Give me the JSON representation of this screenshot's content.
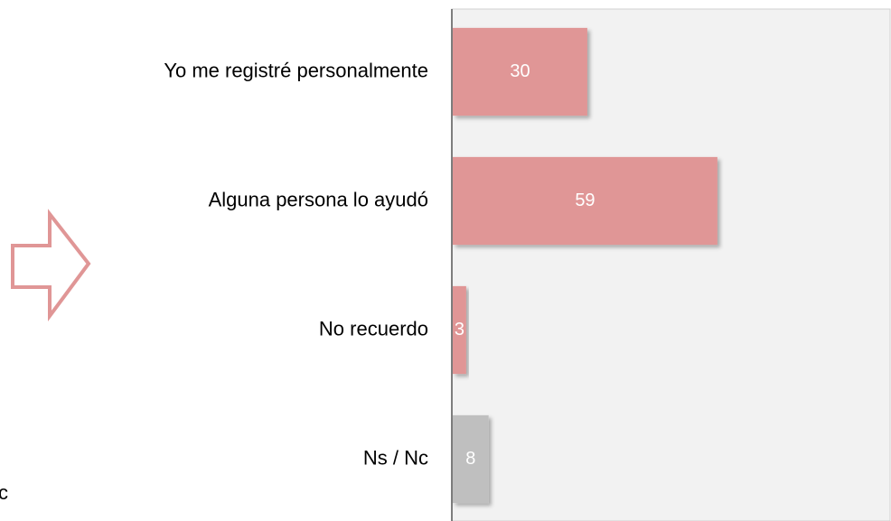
{
  "chart_data": {
    "type": "bar",
    "orientation": "horizontal",
    "categories": [
      "Yo me registré personalmente",
      "Alguna persona lo ayudó",
      "No recuerdo",
      "Ns / Nc"
    ],
    "values": [
      30,
      59,
      3,
      8
    ],
    "colors": [
      "#e09696",
      "#e09696",
      "#e09696",
      "#bfbfbf"
    ],
    "xlim": [
      0,
      97.5
    ],
    "note": "c"
  }
}
